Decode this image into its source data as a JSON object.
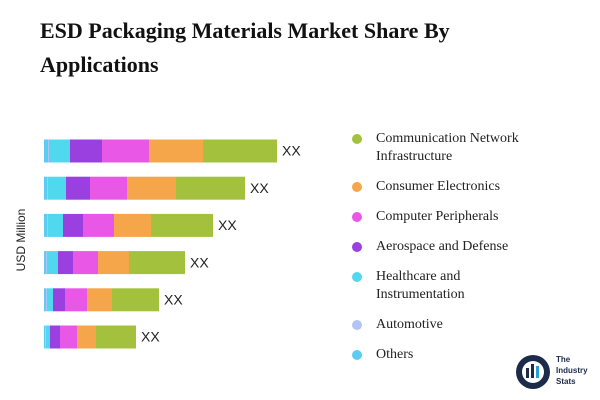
{
  "chart_data": {
    "type": "stacked-bar-horizontal",
    "title": "ESD Packaging Materials Market Share By Applications",
    "y_label": "USD Million",
    "categories": [
      null,
      null,
      null,
      null,
      null,
      null
    ],
    "value_labels": [
      "XX",
      "XX",
      "XX",
      "XX",
      "XX",
      "XX"
    ],
    "series": [
      {
        "name": "Others",
        "color": "#5dccf3",
        "values": [
          4,
          3,
          3,
          2,
          2,
          1
        ]
      },
      {
        "name": "Automotive",
        "color": "#b3c3f3",
        "values": [
          1,
          1,
          1,
          1,
          1,
          1
        ]
      },
      {
        "name": "Healthcare and Instrumentation",
        "color": "#4fd8ee",
        "values": [
          21,
          18,
          15,
          11,
          6,
          4
        ]
      },
      {
        "name": "Aerospace and Defense",
        "color": "#9a3fe0",
        "values": [
          32,
          24,
          20,
          15,
          12,
          10
        ]
      },
      {
        "name": "Computer Peripherals",
        "color": "#e957e6",
        "values": [
          47,
          37,
          31,
          25,
          22,
          17
        ]
      },
      {
        "name": "Consumer Electronics",
        "color": "#f5a54a",
        "values": [
          54,
          49,
          37,
          31,
          25,
          19
        ]
      },
      {
        "name": "Communication Network Infrastructure",
        "color": "#a4c13d",
        "values": [
          74,
          69,
          62,
          56,
          47,
          40
        ]
      }
    ]
  },
  "logo": {
    "line1": "The",
    "line2": "Industry",
    "line3": "Stats"
  }
}
